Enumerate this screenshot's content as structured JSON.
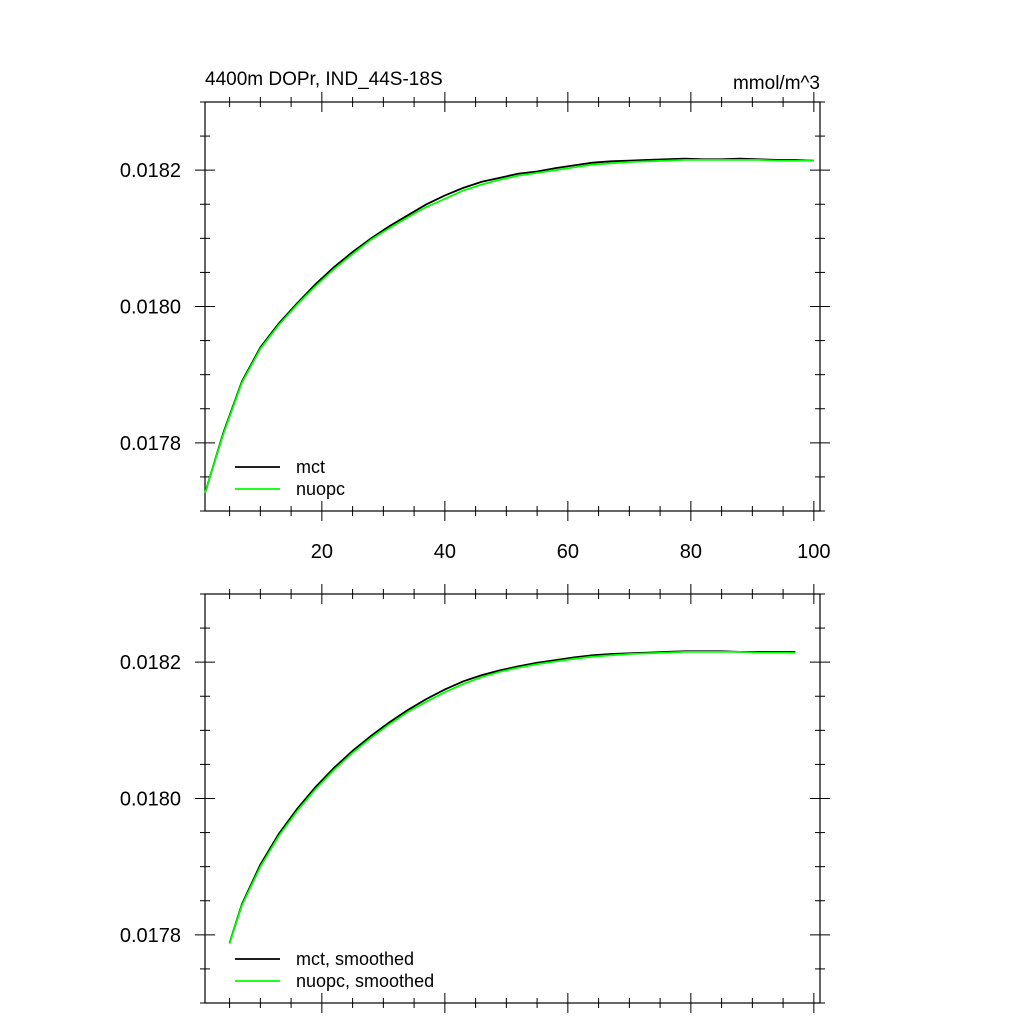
{
  "chart_data": [
    {
      "type": "line",
      "title": "4400m DOPr, IND_44S-18S",
      "units": "mmol/m^3",
      "xlim": [
        1,
        101
      ],
      "ylim": [
        0.0177,
        0.0183
      ],
      "x_ticks": [
        20,
        40,
        60,
        80,
        100
      ],
      "x_tick_labels": [
        "20",
        "40",
        "60",
        "80",
        "100"
      ],
      "y_ticks": [
        0.0178,
        0.018,
        0.0182
      ],
      "y_tick_labels": [
        "0.0178",
        "0.0180",
        "0.0182"
      ],
      "legend_position": "bottom-left",
      "x": [
        1,
        4,
        7,
        10,
        13,
        16,
        19,
        22,
        25,
        28,
        31,
        34,
        37,
        40,
        43,
        46,
        49,
        52,
        55,
        58,
        61,
        64,
        67,
        70,
        73,
        76,
        79,
        82,
        85,
        88,
        91,
        94,
        97,
        100
      ],
      "series": [
        {
          "name": "mct",
          "color": "#000000",
          "values": [
            0.017726,
            0.017815,
            0.01789,
            0.01794,
            0.017975,
            0.018005,
            0.018033,
            0.018058,
            0.01808,
            0.0181,
            0.018118,
            0.018134,
            0.01815,
            0.018163,
            0.018174,
            0.018183,
            0.018189,
            0.018195,
            0.018198,
            0.018203,
            0.018207,
            0.018211,
            0.018213,
            0.018214,
            0.018215,
            0.018216,
            0.018217,
            0.018216,
            0.018216,
            0.018217,
            0.018216,
            0.018215,
            0.018215,
            0.018214
          ]
        },
        {
          "name": "nuopc",
          "color": "#00ff00",
          "values": [
            0.017726,
            0.017813,
            0.017888,
            0.017938,
            0.017973,
            0.018003,
            0.01803,
            0.018055,
            0.018077,
            0.018098,
            0.018115,
            0.018131,
            0.018146,
            0.018158,
            0.01817,
            0.018179,
            0.018186,
            0.018192,
            0.018196,
            0.0182,
            0.018204,
            0.018208,
            0.01821,
            0.018212,
            0.018213,
            0.018214,
            0.018215,
            0.018215,
            0.018215,
            0.018215,
            0.018215,
            0.018214,
            0.018214,
            0.018214
          ]
        }
      ]
    },
    {
      "type": "line",
      "xlim": [
        1,
        101
      ],
      "ylim": [
        0.0177,
        0.0183
      ],
      "y_ticks": [
        0.0178,
        0.018,
        0.0182
      ],
      "y_tick_labels": [
        "0.0178",
        "0.0180",
        "0.0182"
      ],
      "legend_position": "bottom-left",
      "x": [
        5,
        7,
        10,
        13,
        16,
        19,
        22,
        25,
        28,
        31,
        34,
        37,
        40,
        43,
        46,
        49,
        52,
        55,
        58,
        61,
        64,
        67,
        70,
        73,
        76,
        79,
        82,
        85,
        88,
        91,
        94,
        97
      ],
      "series": [
        {
          "name": "mct, smoothed",
          "color": "#000000",
          "values": [
            0.017788,
            0.017845,
            0.017903,
            0.017948,
            0.017985,
            0.018017,
            0.018045,
            0.01807,
            0.018092,
            0.018112,
            0.01813,
            0.018146,
            0.01816,
            0.018172,
            0.018181,
            0.018188,
            0.018194,
            0.018199,
            0.018203,
            0.018207,
            0.01821,
            0.018212,
            0.018213,
            0.018214,
            0.018215,
            0.018216,
            0.018216,
            0.018216,
            0.018215,
            0.018215,
            0.018215,
            0.018215
          ]
        },
        {
          "name": "nuopc, smoothed",
          "color": "#00ff00",
          "values": [
            0.017787,
            0.017843,
            0.0179,
            0.017945,
            0.017982,
            0.018014,
            0.018042,
            0.018067,
            0.018089,
            0.018109,
            0.018127,
            0.018142,
            0.018156,
            0.018168,
            0.018178,
            0.018186,
            0.018192,
            0.018197,
            0.018201,
            0.018205,
            0.018208,
            0.01821,
            0.018212,
            0.018213,
            0.018214,
            0.018215,
            0.018215,
            0.018215,
            0.018215,
            0.018214,
            0.018214,
            0.018214
          ]
        }
      ]
    }
  ]
}
